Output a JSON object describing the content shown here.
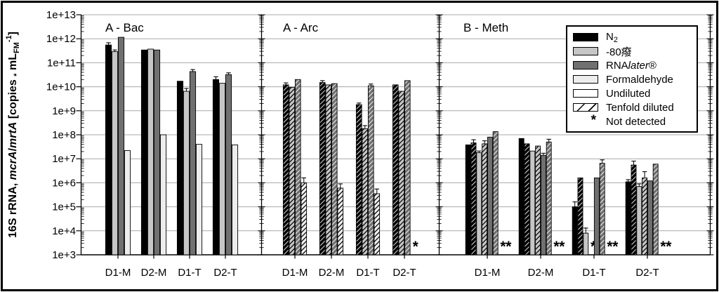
{
  "chart_data": {
    "type": "bar",
    "log_scale": true,
    "ylim": [
      1000.0,
      10000000000000.0
    ],
    "grid": true,
    "legend_position": "top-right",
    "not_detected_marker": "*",
    "y_tick_labels": [
      "1e+13",
      "1e+12",
      "1e+11",
      "1e+10",
      "1e+9",
      "1e+8",
      "1e+7",
      "1e+6",
      "1e+5",
      "1e+4",
      "1e+3"
    ],
    "ylabel_text": "16S rRNA, mcrA/mrtA [copies * mL_FM^-1]",
    "ylabel_parts": [
      {
        "t": "16S rRNA, "
      },
      {
        "t": "mcrA",
        "i": true
      },
      {
        "t": "/"
      },
      {
        "t": "mrtA",
        "i": true
      },
      {
        "t": " [copies "
      },
      {
        "t": "*",
        "sub": true
      },
      {
        "t": " mL"
      },
      {
        "t": "FM",
        "sub": true
      },
      {
        "t": "-1",
        "sup": true
      },
      {
        "t": "]"
      }
    ],
    "categories": [
      "D1-M",
      "D2-M",
      "D1-T",
      "D2-T"
    ],
    "treatments": {
      "n2": {
        "fill": "#000000",
        "hatch": "#bdbdbd"
      },
      "minus80": {
        "fill": "#c6c6c6",
        "hatch": "#000000"
      },
      "rnalater": {
        "fill": "#707070",
        "hatch": "#e3e3e3"
      },
      "formaldehyde": {
        "fill": "#ededed",
        "hatch": "#000000"
      }
    },
    "panels": [
      {
        "title": "A - Bac",
        "series": [
          {
            "name": "N2 undiluted",
            "treatment": "n2",
            "dilution": "undiluted",
            "values": [
              550000000000.0,
              340000000000.0,
              17000000000.0,
              20000000000.0
            ],
            "err": [
              680000000000.0,
              null,
              null,
              26000000000.0
            ]
          },
          {
            "name": "-80 undiluted",
            "treatment": "minus80",
            "dilution": "undiluted",
            "values": [
              290000000000.0,
              370000000000.0,
              6500000000.0,
              14000000000.0
            ],
            "err": [
              340000000000.0,
              null,
              8500000000.0,
              null
            ]
          },
          {
            "name": "RNAlater undiluted",
            "treatment": "rnalater",
            "dilution": "undiluted",
            "values": [
              1150000000000.0,
              340000000000.0,
              43000000000.0,
              32000000000.0
            ],
            "err": [
              null,
              null,
              52000000000.0,
              38000000000.0
            ]
          },
          {
            "name": "Formaldehyde undiluted",
            "treatment": "formaldehyde",
            "dilution": "undiluted",
            "values": [
              22000000.0,
              100000000.0,
              40000000.0,
              38000000.0
            ],
            "err": [
              null,
              null,
              null,
              null
            ]
          }
        ]
      },
      {
        "title": "A - Arc",
        "series": [
          {
            "name": "N2 tenfold",
            "treatment": "n2",
            "dilution": "tenfold",
            "values": [
              12000000000.0,
              15000000000.0,
              1800000000.0,
              12000000000.0
            ],
            "err": [
              14500000000.0,
              18000000000.0,
              2100000000.0,
              null
            ]
          },
          {
            "name": "-80 tenfold",
            "treatment": "minus80",
            "dilution": "tenfold",
            "values": [
              9500000000.0,
              12000000000.0,
              180000000.0,
              6500000000.0
            ],
            "err": [
              null,
              null,
              240000000.0,
              null
            ]
          },
          {
            "name": "RNAlater tenfold",
            "treatment": "rnalater",
            "dilution": "tenfold",
            "values": [
              20000000000.0,
              13500000000.0,
              11000000000.0,
              18000000000.0
            ],
            "err": [
              null,
              null,
              13000000000.0,
              null
            ]
          },
          {
            "name": "Formaldehyde tenfold",
            "treatment": "formaldehyde",
            "dilution": "tenfold",
            "values": [
              1000000.0,
              600000.0,
              350000.0,
              null
            ],
            "err": [
              1600000.0,
              900000.0,
              550000.0,
              null
            ]
          }
        ]
      },
      {
        "title": "B - Meth",
        "series": [
          {
            "name": "N2 undiluted",
            "treatment": "n2",
            "dilution": "undiluted",
            "values": [
              38000000.0,
              70000000.0,
              100000.0,
              1100000.0
            ],
            "err": [
              null,
              null,
              160000.0,
              1350000.0
            ]
          },
          {
            "name": "N2 tenfold",
            "treatment": "n2",
            "dilution": "tenfold",
            "values": [
              46000000.0,
              42000000.0,
              1600000.0,
              5500000.0
            ],
            "err": [
              62000000.0,
              null,
              null,
              8000000.0
            ]
          },
          {
            "name": "-80 undiluted",
            "treatment": "minus80",
            "dilution": "undiluted",
            "values": [
              18000000.0,
              21000000.0,
              8000.0,
              700000.0
            ],
            "err": [
              21000000.0,
              null,
              13000.0,
              900000.0
            ]
          },
          {
            "name": "-80 tenfold",
            "treatment": "minus80",
            "dilution": "tenfold",
            "values": [
              42000000.0,
              34000000.0,
              null,
              1600000.0
            ],
            "err": [
              56000000.0,
              null,
              null,
              2900000.0
            ]
          },
          {
            "name": "RNAlater undiluted",
            "treatment": "rnalater",
            "dilution": "undiluted",
            "values": [
              80000000.0,
              14000000.0,
              1600000.0,
              1200000.0
            ],
            "err": [
              null,
              17000000.0,
              null,
              null
            ]
          },
          {
            "name": "RNAlater tenfold",
            "treatment": "rnalater",
            "dilution": "tenfold",
            "values": [
              135000000.0,
              50000000.0,
              6500000.0,
              6000000.0
            ],
            "err": [
              null,
              65000000.0,
              9000000.0,
              null
            ]
          },
          {
            "name": "Formaldehyde undiluted",
            "treatment": "formaldehyde",
            "dilution": "undiluted",
            "values": [
              null,
              null,
              null,
              null
            ],
            "err": [
              null,
              null,
              null,
              null
            ]
          },
          {
            "name": "Formaldehyde tenfold",
            "treatment": "formaldehyde",
            "dilution": "tenfold",
            "values": [
              null,
              null,
              null,
              null
            ],
            "err": [
              null,
              null,
              null,
              null
            ]
          }
        ]
      }
    ],
    "legend": {
      "items": [
        {
          "swatch": "n2",
          "label_parts": [
            {
              "t": "N"
            },
            {
              "t": "2",
              "sub": true
            }
          ]
        },
        {
          "swatch": "minus80",
          "label_parts": [
            {
              "t": "-80癈"
            }
          ]
        },
        {
          "swatch": "rnalater",
          "label_parts": [
            {
              "t": "RNA"
            },
            {
              "t": "later",
              "i": true
            },
            {
              "t": "®"
            }
          ]
        },
        {
          "swatch": "formaldehyde",
          "label_parts": [
            {
              "t": "Formaldehyde"
            }
          ]
        },
        {
          "swatch": "undiluted",
          "label_parts": [
            {
              "t": "Undiluted"
            }
          ]
        },
        {
          "swatch": "tenfold",
          "label_parts": [
            {
              "t": "Tenfold diluted"
            }
          ]
        },
        {
          "swatch": "asterisk",
          "label_parts": [
            {
              "t": "Not detected"
            }
          ]
        }
      ],
      "not_detected_symbol": "*"
    }
  }
}
